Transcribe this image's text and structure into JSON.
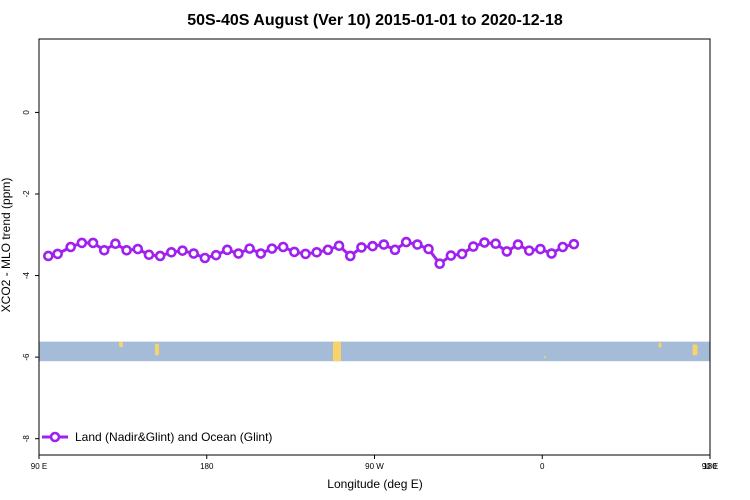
{
  "chart_data": {
    "type": "line",
    "title": "50S-40S August (Ver 10)   2015-01-01 to 2020-12-18",
    "xlabel": "Longitude (deg E)",
    "ylabel": "XCO2 - MLO trend (ppm)",
    "xlim": [
      90,
      450
    ],
    "ylim": [
      -8.4,
      1.8
    ],
    "x_ticks": [
      {
        "value": 90,
        "label": "90 E"
      },
      {
        "value": 180,
        "label": "180"
      },
      {
        "value": 270,
        "label": "90 W"
      },
      {
        "value": 360,
        "label": "0"
      },
      {
        "value": 450,
        "label": "90 E"
      }
    ],
    "x_ticks_extra": [
      {
        "value": 540,
        "label": "180"
      }
    ],
    "y_ticks": [
      {
        "value": 0,
        "label": "0"
      },
      {
        "value": -2,
        "label": "-2"
      },
      {
        "value": -4,
        "label": "-4"
      },
      {
        "value": -6,
        "label": "-6"
      },
      {
        "value": -8,
        "label": "-8"
      }
    ],
    "grid": false,
    "legend_position": "bottom-left",
    "series": [
      {
        "name": "Land (Nadir&Glint) and Ocean (Glint)",
        "color": "#a020f0",
        "x": [
          95,
          100,
          107,
          113,
          119,
          125,
          131,
          137,
          143,
          149,
          155,
          161,
          167,
          173,
          179,
          185,
          191,
          197,
          203,
          209,
          215,
          221,
          227,
          233,
          239,
          245,
          251,
          257,
          263,
          269,
          275,
          281,
          287,
          293,
          299,
          305,
          311,
          317,
          323,
          329,
          335,
          341,
          347,
          353,
          359,
          365,
          371,
          377
        ],
        "y": [
          -3.52,
          -3.47,
          -3.3,
          -3.2,
          -3.2,
          -3.38,
          -3.22,
          -3.38,
          -3.35,
          -3.49,
          -3.52,
          -3.43,
          -3.39,
          -3.46,
          -3.57,
          -3.5,
          -3.37,
          -3.46,
          -3.34,
          -3.46,
          -3.34,
          -3.3,
          -3.42,
          -3.47,
          -3.43,
          -3.37,
          -3.27,
          -3.52,
          -3.31,
          -3.28,
          -3.24,
          -3.37,
          -3.18,
          -3.24,
          -3.35,
          -3.71,
          -3.51,
          -3.47,
          -3.29,
          -3.19,
          -3.22,
          -3.41,
          -3.24,
          -3.39,
          -3.35,
          -3.46,
          -3.3,
          -3.23
        ]
      }
    ],
    "map_strip": {
      "y_range": [
        -6.1,
        -5.62
      ],
      "ocean_color": "#a5bcd9",
      "land_color": "#f7d36a"
    }
  }
}
